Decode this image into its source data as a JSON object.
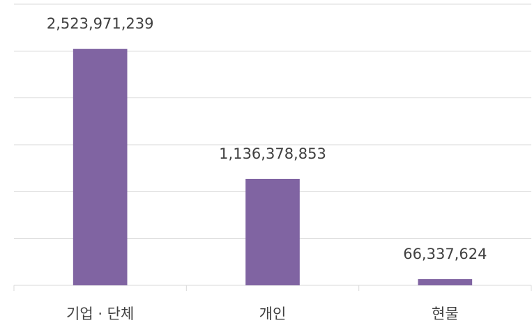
{
  "chart_data": {
    "type": "bar",
    "categories": [
      "기업 · 단체",
      "개인",
      "현물"
    ],
    "values": [
      2523971239,
      1136378853,
      66337624
    ],
    "value_labels": [
      "2,523,971,239",
      "1,136,378,853",
      "66,337,624"
    ],
    "color": "#8064a2",
    "ylim": [
      0,
      3000000000
    ],
    "yticks": [
      0,
      500000000,
      1000000000,
      1500000000,
      2000000000,
      2500000000,
      3000000000
    ],
    "grid": true
  }
}
